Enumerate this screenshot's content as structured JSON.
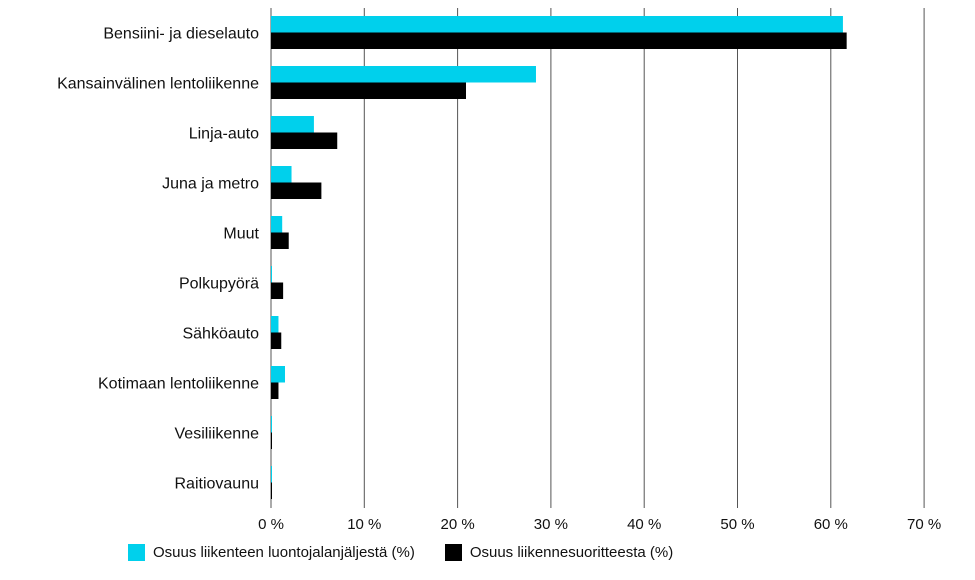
{
  "chart_data": {
    "type": "bar",
    "orientation": "horizontal",
    "categories": [
      "Bensiini- ja dieselauto",
      "Kansainvälinen lentoliikenne",
      "Linja-auto",
      "Juna ja metro",
      "Muut",
      "Polkupyörä",
      "Sähköauto",
      "Kotimaan lentoliikenne",
      "Vesiliikenne",
      "Raitiovaunu"
    ],
    "series": [
      {
        "name": "Osuus liikenteen luontojalanjäljestä (%)",
        "color": "#00d0ec",
        "values": [
          61.3,
          28.4,
          4.6,
          2.2,
          1.2,
          0.1,
          0.8,
          1.5,
          0.1,
          0.1
        ]
      },
      {
        "name": "Osuus liikennesuoritteesta (%)",
        "color": "#000000",
        "values": [
          61.7,
          20.9,
          7.1,
          5.4,
          1.9,
          1.3,
          1.1,
          0.8,
          0.1,
          0.1
        ]
      }
    ],
    "xlim": [
      0,
      70
    ],
    "xticks": [
      0,
      10,
      20,
      30,
      40,
      50,
      60,
      70
    ],
    "xtick_labels": [
      "0 %",
      "10 %",
      "20 %",
      "30 %",
      "40 %",
      "50 %",
      "60 %",
      "70 %"
    ],
    "grid": "vertical",
    "legend_position": "bottom"
  }
}
